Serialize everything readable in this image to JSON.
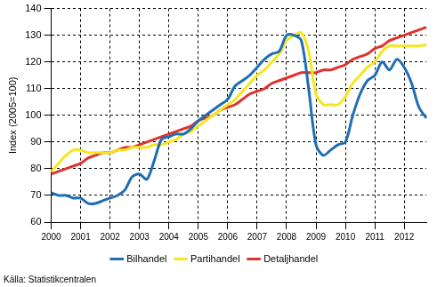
{
  "chart_data": {
    "type": "line",
    "y_label": "Index (2005=100)",
    "source": "Källa: Statistikcentralen",
    "categories": [
      "2000",
      null,
      null,
      null,
      "2001",
      null,
      null,
      null,
      "2002",
      null,
      null,
      null,
      "2003",
      null,
      null,
      null,
      "2004",
      null,
      null,
      null,
      "2005",
      null,
      null,
      null,
      "2006",
      null,
      null,
      null,
      "2007",
      null,
      null,
      null,
      "2008",
      null,
      null,
      null,
      "2009",
      null,
      null,
      null,
      "2010",
      null,
      null,
      null,
      "2011",
      null,
      null,
      null,
      "2012",
      null,
      null,
      null
    ],
    "series": [
      {
        "name": "Bilhandel",
        "color": "#1f6db3",
        "values": [
          71,
          70,
          70,
          69,
          69,
          67,
          67,
          68,
          69,
          70,
          72,
          77,
          78,
          76,
          83,
          91,
          92,
          93,
          93,
          95,
          98,
          100,
          102,
          104,
          106,
          111,
          113,
          115,
          118,
          121,
          123,
          124,
          130,
          130,
          128,
          110,
          89,
          85,
          87,
          89,
          90,
          100,
          108,
          113,
          115,
          120,
          117,
          121,
          118,
          112,
          103,
          99
        ]
      },
      {
        "name": "Partihandel",
        "color": "#f5e61e",
        "values": [
          79,
          82,
          85,
          87,
          87,
          86,
          86,
          86,
          86,
          87,
          87,
          88,
          88,
          88,
          89,
          89,
          90,
          91,
          93,
          94,
          96,
          98,
          100,
          102,
          104,
          106,
          109,
          112,
          115,
          117,
          120,
          123,
          128,
          130,
          131,
          124,
          108,
          104,
          104,
          104,
          107,
          112,
          115,
          118,
          120,
          124,
          126,
          126,
          126,
          126,
          126,
          126.5
        ]
      },
      {
        "name": "Detaljhandel",
        "color": "#e0332c",
        "values": [
          78,
          79,
          80,
          81,
          82,
          84,
          85,
          86,
          86,
          87,
          88,
          88,
          89,
          90,
          91,
          92,
          93,
          94,
          95,
          96,
          98,
          99,
          100,
          102,
          103,
          104,
          106,
          108,
          109,
          110,
          112,
          113,
          114,
          115,
          116,
          116,
          116,
          117,
          117,
          118,
          119,
          121,
          122,
          123,
          125,
          126,
          128,
          129,
          130,
          131,
          132,
          133
        ]
      }
    ],
    "ylim": [
      60,
      140
    ],
    "yticks": [
      60,
      70,
      80,
      90,
      100,
      110,
      120,
      130,
      140
    ],
    "grid": true,
    "legend": "bottom",
    "line_style": "solid"
  }
}
